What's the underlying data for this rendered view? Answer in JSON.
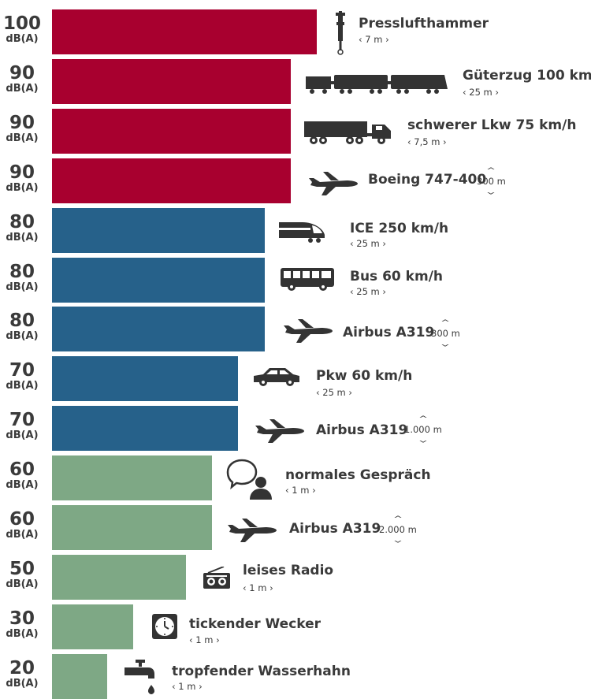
{
  "colors": {
    "high": "#a8002f",
    "mid": "#26618a",
    "low": "#7ea885",
    "icon": "#333333"
  },
  "chart_data": {
    "type": "bar",
    "orientation": "horizontal",
    "unit": "dB(A)",
    "rows": [
      {
        "value": 100,
        "label": "Presslufthammer",
        "distance": "‹ 7 m ›",
        "icon": "jackhammer-icon",
        "band": "high"
      },
      {
        "value": 90,
        "label": "Güterzug 100 km/h",
        "distance": "‹ 25 m ›",
        "icon": "freight-train-icon",
        "band": "high"
      },
      {
        "value": 90,
        "label": "schwerer Lkw 75 km/h",
        "distance": "‹ 7,5 m ›",
        "icon": "truck-icon",
        "band": "high"
      },
      {
        "value": 90,
        "label": "Boeing 747-400",
        "altitude": "300 m",
        "icon": "airplane-icon",
        "band": "high"
      },
      {
        "value": 80,
        "label": "ICE 250 km/h",
        "distance": "‹ 25 m ›",
        "icon": "high-speed-train-icon",
        "band": "mid"
      },
      {
        "value": 80,
        "label": "Bus 60 km/h",
        "distance": "‹ 25 m ›",
        "icon": "bus-icon",
        "band": "mid"
      },
      {
        "value": 80,
        "label": "Airbus A319",
        "altitude": "300 m",
        "icon": "airplane-icon",
        "band": "mid"
      },
      {
        "value": 70,
        "label": "Pkw 60 km/h",
        "distance": "‹ 25 m ›",
        "icon": "car-icon",
        "band": "mid"
      },
      {
        "value": 70,
        "label": "Airbus A319",
        "altitude": "1.000 m",
        "icon": "airplane-icon",
        "band": "mid"
      },
      {
        "value": 60,
        "label": "normales Gespräch",
        "distance": "‹ 1 m ›",
        "icon": "conversation-icon",
        "band": "low"
      },
      {
        "value": 60,
        "label": "Airbus A319",
        "altitude": "2.000 m",
        "icon": "airplane-icon",
        "band": "low"
      },
      {
        "value": 50,
        "label": "leises Radio",
        "distance": "‹ 1 m ›",
        "icon": "radio-icon",
        "band": "low"
      },
      {
        "value": 30,
        "label": "tickender Wecker",
        "distance": "‹ 1 m ›",
        "icon": "alarm-clock-icon",
        "band": "low"
      },
      {
        "value": 20,
        "label": "tropfender Wasserhahn",
        "distance": "‹ 1 m ›",
        "icon": "dripping-tap-icon",
        "band": "low"
      }
    ]
  }
}
